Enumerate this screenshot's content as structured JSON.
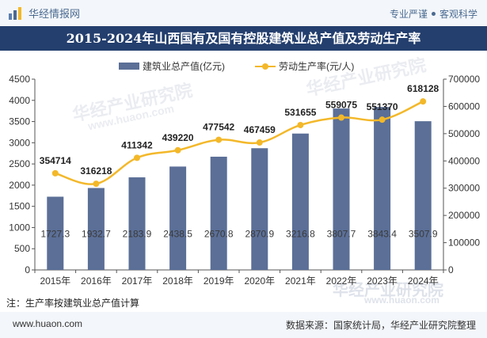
{
  "header": {
    "brand": "华经情报网",
    "tagline_left": "专业严谨",
    "tagline_right": "客观科学"
  },
  "title": "2015-2024年山西国有及国有控股建筑业总产值及劳动生产率",
  "watermark": {
    "cn": "华经产业研究院",
    "en": "www.huaon.com"
  },
  "note": "注：生产率按建筑业总产值计算",
  "footer": {
    "url": "www.huaon.com",
    "source": "数据来源：国家统计局，华经产业研究院整理"
  },
  "colors": {
    "bar": "#5b6f97",
    "line": "#f3b829",
    "title_bg": "#243f6e"
  },
  "chart_data": {
    "type": "bar+line",
    "title": "2015-2024年山西国有及国有控股建筑业总产值及劳动生产率",
    "categories": [
      "2015年",
      "2016年",
      "2017年",
      "2018年",
      "2019年",
      "2020年",
      "2021年",
      "2022年",
      "2023年",
      "2024年"
    ],
    "series": [
      {
        "name": "建筑业总产值(亿元)",
        "type": "bar",
        "axis": "left",
        "values": [
          1727.3,
          1932.7,
          2183.9,
          2438.5,
          2670.8,
          2870.9,
          3216.8,
          3807.7,
          3843.4,
          3507.9
        ],
        "labels": [
          "1727.3",
          "1932.7",
          "2183.9",
          "2438.5",
          "2670.8",
          "2870.9",
          "3216.8",
          "3807.7",
          "3843.4",
          "3507.9"
        ]
      },
      {
        "name": "劳动生产率(元/人)",
        "type": "line",
        "axis": "right",
        "values": [
          354714,
          316218,
          411342,
          439220,
          477542,
          467459,
          531655,
          559075,
          551370,
          618128
        ],
        "labels": [
          "354714",
          "316218",
          "411342",
          "439220",
          "477542",
          "467459",
          "531655",
          "559075",
          "551370",
          "618128"
        ]
      }
    ],
    "y_left": {
      "min": 0,
      "max": 4500,
      "ticks": [
        "0",
        "500",
        "1000",
        "1500",
        "2000",
        "2500",
        "3000",
        "3500",
        "4000",
        "4500"
      ]
    },
    "y_right": {
      "min": 0,
      "max": 700000,
      "ticks": [
        "0",
        "100000",
        "200000",
        "300000",
        "400000",
        "500000",
        "600000",
        "700000"
      ]
    },
    "legend_position": "top-center",
    "grid": false
  }
}
